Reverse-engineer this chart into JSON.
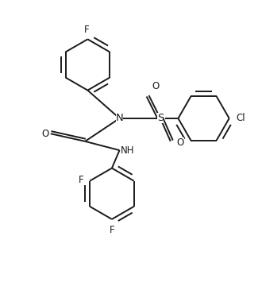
{
  "background_color": "#ffffff",
  "line_color": "#1a1a1a",
  "line_width": 1.4,
  "font_size": 8.5,
  "figsize": [
    3.3,
    3.75
  ],
  "dpi": 100,
  "xlim": [
    -1.0,
    9.0
  ],
  "ylim": [
    -0.5,
    11.0
  ]
}
